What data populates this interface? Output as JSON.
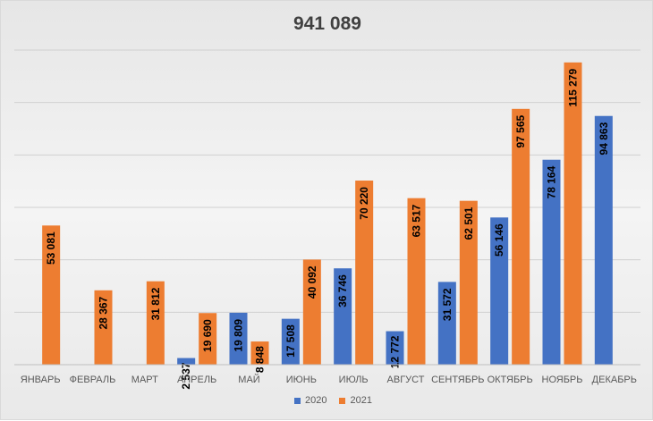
{
  "chart_data": {
    "type": "bar",
    "title": "941 089",
    "categories": [
      "ЯНВАРЬ",
      "ФЕВРАЛЬ",
      "МАРТ",
      "АПРЕЛЬ",
      "МАЙ",
      "ИЮНЬ",
      "ИЮЛЬ",
      "АВГУСТ",
      "СЕНТЯБРЬ",
      "ОКТЯБРЬ",
      "НОЯБРЬ",
      "ДЕКАБРЬ"
    ],
    "series": [
      {
        "name": "2020",
        "color": "#4472c4",
        "values": [
          null,
          null,
          null,
          2537,
          19809,
          17508,
          36746,
          12772,
          31572,
          56146,
          78164,
          94863
        ],
        "labels": [
          "",
          "",
          "",
          "2 537",
          "19 809",
          "17 508",
          "36 746",
          "12 772",
          "31 572",
          "56 146",
          "78 164",
          "94 863"
        ]
      },
      {
        "name": "2021",
        "color": "#ed7d31",
        "values": [
          53081,
          28367,
          31812,
          19690,
          8848,
          40092,
          70220,
          63517,
          62501,
          97565,
          115279,
          null
        ],
        "labels": [
          "53 081",
          "28 367",
          "31 812",
          "19 690",
          "8 848",
          "40 092",
          "70 220",
          "63 517",
          "62 501",
          "97 565",
          "115 279",
          ""
        ]
      }
    ],
    "ylim": [
      0,
      120000
    ],
    "grid": true,
    "y_ticks_shown": false,
    "legend": "bottom"
  }
}
